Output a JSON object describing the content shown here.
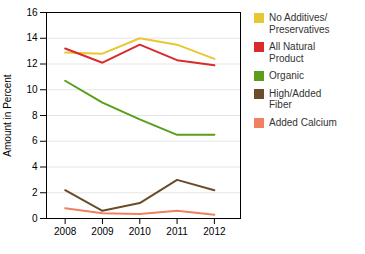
{
  "chart_data": {
    "type": "line",
    "x": [
      2008,
      2009,
      2010,
      2011,
      2012
    ],
    "xlim": [
      2007.5,
      2012.7
    ],
    "xticks": [
      2008,
      2009,
      2010,
      2011,
      2012
    ],
    "ylabel": "Amount in Percent",
    "ylim": [
      0,
      16
    ],
    "yticks": [
      0,
      2,
      4,
      6,
      8,
      10,
      12,
      14,
      16
    ],
    "grid": true,
    "legend": "right",
    "series": [
      {
        "name": "No Additives/\nPreservatives",
        "color": "#E8C832",
        "values": [
          12.9,
          12.8,
          14.0,
          13.5,
          12.4
        ]
      },
      {
        "name": "All Natural\nProduct",
        "color": "#D92B2B",
        "values": [
          13.2,
          12.1,
          13.5,
          12.3,
          11.9
        ]
      },
      {
        "name": "Organic",
        "color": "#5A9E1A",
        "values": [
          10.7,
          9.0,
          7.7,
          6.5,
          6.5
        ]
      },
      {
        "name": "High/Added\nFiber",
        "color": "#6B4C2A",
        "values": [
          2.2,
          0.6,
          1.2,
          3.0,
          2.2
        ]
      },
      {
        "name": "Added Calcium",
        "color": "#F08060",
        "values": [
          0.8,
          0.4,
          0.35,
          0.6,
          0.3
        ]
      }
    ]
  }
}
